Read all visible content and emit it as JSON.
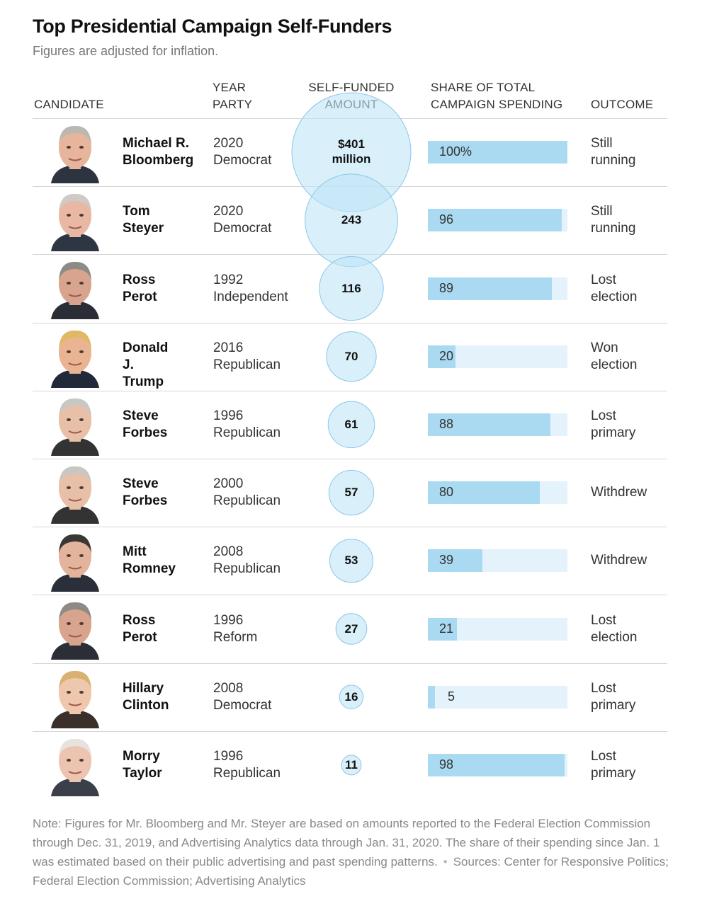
{
  "title": "Top Presidential Campaign Self-Funders",
  "subtitle": "Figures are adjusted for inflation.",
  "headers": {
    "candidate": "CANDIDATE",
    "year": "YEAR",
    "party": "PARTY",
    "amount_1": "SELF-FUNDED",
    "amount_2": "AMOUNT",
    "share_1": "SHARE OF TOTAL",
    "share_2": "CAMPAIGN SPENDING",
    "outcome": "OUTCOME"
  },
  "colors": {
    "bar_fill": "#a9daf2",
    "bar_track": "#e3f2fb",
    "bubble_fill": "#bfe4f7",
    "bubble_stroke": "#8cc6ea"
  },
  "chart_data": {
    "type": "table",
    "units_note": "Self-funded amount in millions of dollars (inflation-adjusted); share in percent",
    "rows": [
      {
        "first": "Michael R.",
        "last": "Bloomberg",
        "year": "2020",
        "party": "Democrat",
        "amount": 401,
        "amount_label_1": "$401",
        "amount_label_2": "million",
        "share": 100,
        "share_label": "100%",
        "outcome_1": "Still",
        "outcome_2": "running",
        "photo": "bloomberg-photo"
      },
      {
        "first": "Tom",
        "last": "Steyer",
        "year": "2020",
        "party": "Democrat",
        "amount": 243,
        "amount_label_1": "243",
        "amount_label_2": "",
        "share": 96,
        "share_label": "96",
        "outcome_1": "Still",
        "outcome_2": "running",
        "photo": "steyer-photo"
      },
      {
        "first": "Ross",
        "last": "Perot",
        "year": "1992",
        "party": "Independent",
        "amount": 116,
        "amount_label_1": "116",
        "amount_label_2": "",
        "share": 89,
        "share_label": "89",
        "outcome_1": "Lost",
        "outcome_2": "election",
        "photo": "perot-photo"
      },
      {
        "first": "Donald J.",
        "last": "Trump",
        "year": "2016",
        "party": "Republican",
        "amount": 70,
        "amount_label_1": "70",
        "amount_label_2": "",
        "share": 20,
        "share_label": "20",
        "outcome_1": "Won",
        "outcome_2": "election",
        "photo": "trump-photo"
      },
      {
        "first": "Steve",
        "last": "Forbes",
        "year": "1996",
        "party": "Republican",
        "amount": 61,
        "amount_label_1": "61",
        "amount_label_2": "",
        "share": 88,
        "share_label": "88",
        "outcome_1": "Lost",
        "outcome_2": "primary",
        "photo": "forbes-photo"
      },
      {
        "first": "Steve",
        "last": "Forbes",
        "year": "2000",
        "party": "Republican",
        "amount": 57,
        "amount_label_1": "57",
        "amount_label_2": "",
        "share": 80,
        "share_label": "80",
        "outcome_1": "Withdrew",
        "outcome_2": "",
        "photo": "forbes-photo"
      },
      {
        "first": "Mitt",
        "last": "Romney",
        "year": "2008",
        "party": "Republican",
        "amount": 53,
        "amount_label_1": "53",
        "amount_label_2": "",
        "share": 39,
        "share_label": "39",
        "outcome_1": "Withdrew",
        "outcome_2": "",
        "photo": "romney-photo"
      },
      {
        "first": "Ross",
        "last": "Perot",
        "year": "1996",
        "party": "Reform",
        "amount": 27,
        "amount_label_1": "27",
        "amount_label_2": "",
        "share": 21,
        "share_label": "21",
        "outcome_1": "Lost",
        "outcome_2": "election",
        "photo": "perot-photo"
      },
      {
        "first": "Hillary",
        "last": "Clinton",
        "year": "2008",
        "party": "Democrat",
        "amount": 16,
        "amount_label_1": "16",
        "amount_label_2": "",
        "share": 5,
        "share_label": "5",
        "outcome_1": "Lost",
        "outcome_2": "primary",
        "photo": "clinton-photo"
      },
      {
        "first": "Morry",
        "last": "Taylor",
        "year": "1996",
        "party": "Republican",
        "amount": 11,
        "amount_label_1": "11",
        "amount_label_2": "",
        "share": 98,
        "share_label": "98",
        "outcome_1": "Lost",
        "outcome_2": "primary",
        "photo": "taylor-photo"
      }
    ]
  },
  "note": {
    "text": "Note: Figures for Mr. Bloomberg and Mr. Steyer are based on amounts reported to the Federal Election Commission through Dec. 31, 2019, and Advertising Analytics data through Jan. 31, 2020. The share of their spending since Jan. 1 was estimated based on their public advertising and past spending patterns.",
    "separator": "•",
    "sources": "Sources: Center for Responsive Politics; Federal Election Commission; Advertising Analytics"
  }
}
